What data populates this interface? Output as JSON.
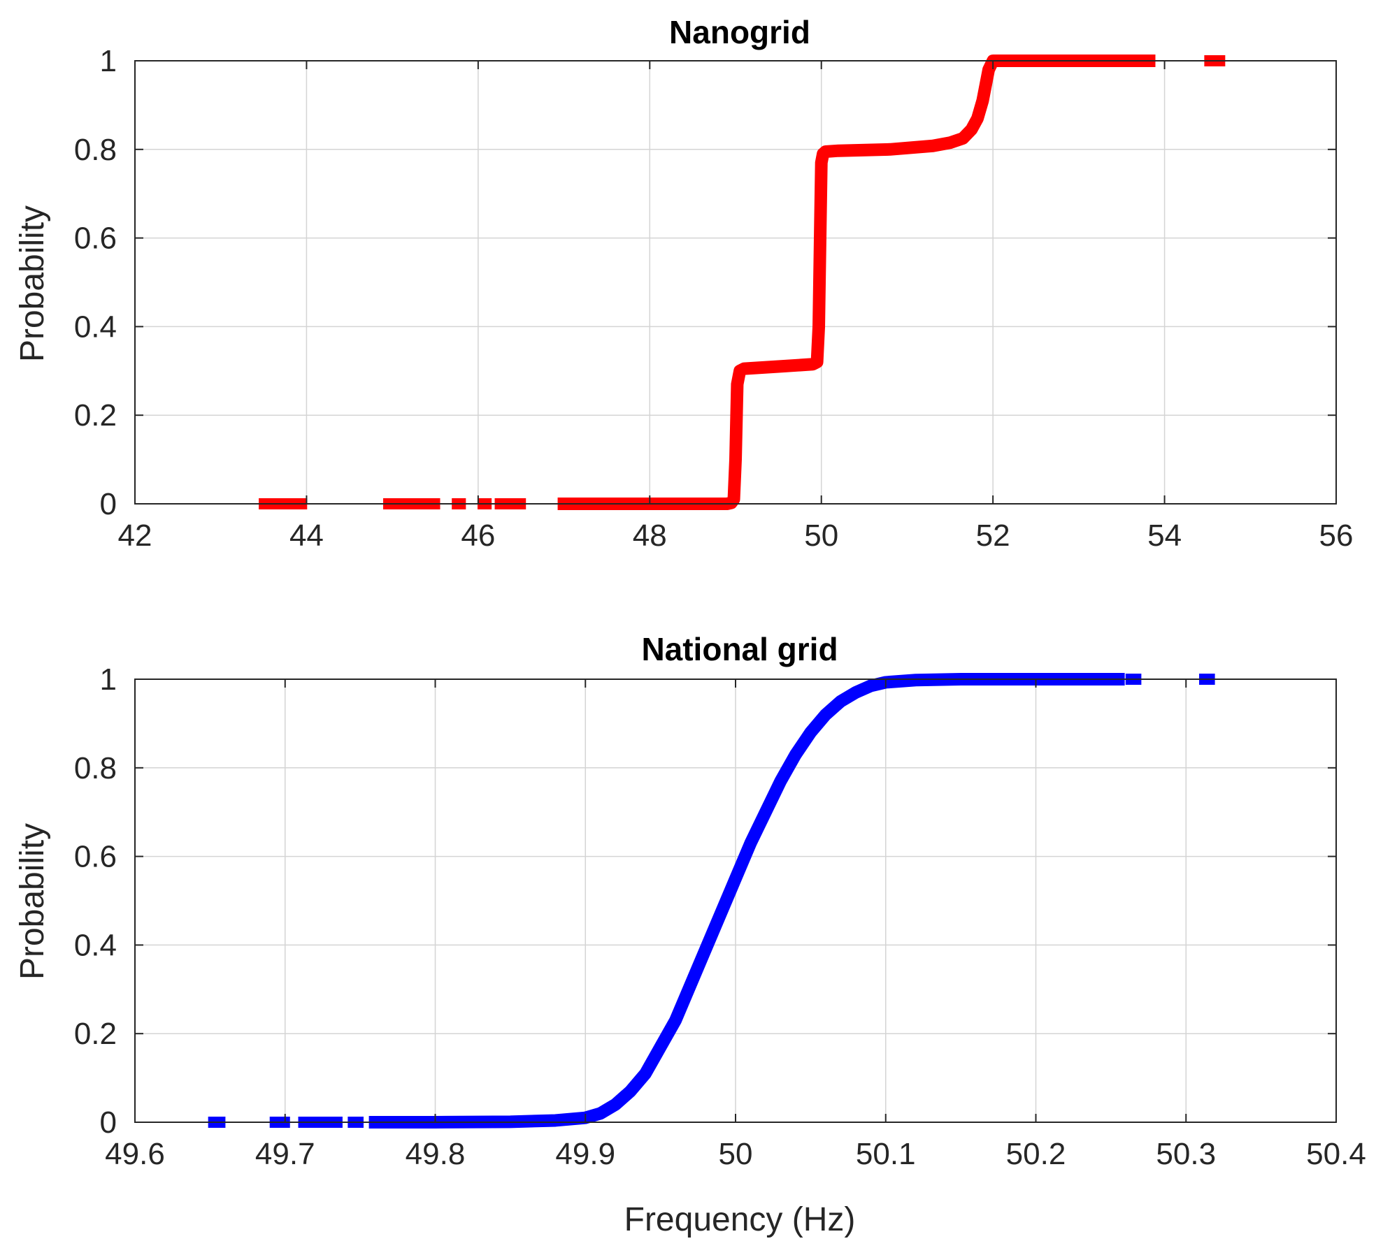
{
  "chart_data": [
    {
      "type": "line",
      "title": "Nanogrid",
      "xlabel": "",
      "ylabel": "Probability",
      "xlim": [
        42,
        56
      ],
      "ylim": [
        0,
        1
      ],
      "xticks": [
        "42",
        "44",
        "46",
        "48",
        "50",
        "52",
        "54",
        "56"
      ],
      "yticks": [
        "0",
        "0.2",
        "0.4",
        "0.6",
        "0.8",
        "1"
      ],
      "grid": true,
      "color": "#ff0000",
      "series": [
        {
          "x": [
            47.0,
            48.0,
            48.9,
            48.95,
            48.98,
            49.0,
            49.02,
            49.05,
            49.1,
            49.5,
            49.9,
            49.95,
            49.97,
            49.99,
            50.0,
            50.02,
            50.05,
            50.2,
            50.8,
            51.3,
            51.5,
            51.65,
            51.75,
            51.82,
            51.88,
            51.92,
            51.95,
            52.0,
            52.3,
            53.0,
            53.82
          ],
          "y": [
            0.0,
            0.0,
            0.0,
            0.002,
            0.01,
            0.1,
            0.27,
            0.3,
            0.305,
            0.31,
            0.315,
            0.32,
            0.4,
            0.65,
            0.77,
            0.79,
            0.795,
            0.797,
            0.8,
            0.808,
            0.815,
            0.825,
            0.845,
            0.87,
            0.91,
            0.95,
            0.98,
            1.0,
            1.0,
            1.0,
            1.0
          ]
        }
      ],
      "outlier_segments": [
        {
          "x": [
            43.5,
            43.95
          ],
          "y": 0
        },
        {
          "x": [
            44.95,
            45.35
          ],
          "y": 0
        },
        {
          "x": [
            45.45,
            45.5
          ],
          "y": 0
        },
        {
          "x": [
            45.75,
            45.8
          ],
          "y": 0
        },
        {
          "x": [
            46.05,
            46.1
          ],
          "y": 0
        },
        {
          "x": [
            46.25,
            46.5
          ],
          "y": 0
        },
        {
          "x": [
            54.52,
            54.65
          ],
          "y": 1
        }
      ]
    },
    {
      "type": "line",
      "title": "National grid",
      "xlabel": "Frequency (Hz)",
      "ylabel": "Probability",
      "xlim": [
        49.6,
        50.4
      ],
      "ylim": [
        0,
        1
      ],
      "xticks": [
        "49.6",
        "49.7",
        "49.8",
        "49.9",
        "50",
        "50.1",
        "50.2",
        "50.3",
        "50.4"
      ],
      "yticks": [
        "0",
        "0.2",
        "0.4",
        "0.6",
        "0.8",
        "1"
      ],
      "grid": true,
      "color": "#0000ff",
      "series": [
        {
          "x": [
            49.76,
            49.8,
            49.85,
            49.88,
            49.9,
            49.91,
            49.92,
            49.93,
            49.94,
            49.95,
            49.96,
            49.97,
            49.98,
            49.99,
            50.0,
            50.01,
            50.02,
            50.03,
            50.04,
            50.05,
            50.06,
            50.07,
            50.08,
            50.09,
            50.1,
            50.12,
            50.15,
            50.2,
            50.255
          ],
          "y": [
            0.0,
            0.0,
            0.001,
            0.004,
            0.01,
            0.02,
            0.04,
            0.07,
            0.11,
            0.17,
            0.23,
            0.31,
            0.39,
            0.47,
            0.55,
            0.63,
            0.7,
            0.77,
            0.83,
            0.88,
            0.92,
            0.95,
            0.97,
            0.985,
            0.993,
            0.998,
            1.0,
            1.0,
            1.0
          ]
        }
      ],
      "outlier_segments": [
        {
          "x": [
            49.652,
            49.657
          ],
          "y": 0
        },
        {
          "x": [
            49.693,
            49.7
          ],
          "y": 0
        },
        {
          "x": [
            49.712,
            49.726
          ],
          "y": 0
        },
        {
          "x": [
            49.731,
            49.735
          ],
          "y": 0
        },
        {
          "x": [
            49.745,
            49.749
          ],
          "y": 0
        },
        {
          "x": [
            50.263,
            50.267
          ],
          "y": 1
        },
        {
          "x": [
            50.312,
            50.316
          ],
          "y": 1
        }
      ]
    }
  ]
}
